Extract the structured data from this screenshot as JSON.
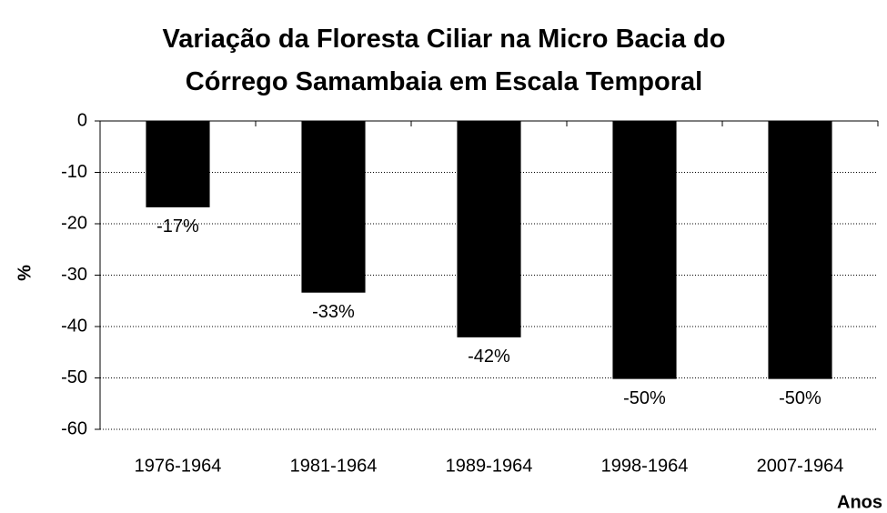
{
  "chart_data": {
    "type": "bar",
    "title": "Variação da Floresta Ciliar na Micro Bacia do Córrego Samambaia em Escala Temporal",
    "x_label": "Anos",
    "y_label": "%",
    "categories": [
      "1976-1964",
      "1981-1964",
      "1989-1964",
      "1998-1964",
      "2007-1964"
    ],
    "values": [
      -16.8,
      -33.4,
      -42.1,
      -50.2,
      -50.2
    ],
    "value_labels": [
      "-17%",
      "-33%",
      "-42%",
      "-50%",
      "-50%"
    ],
    "color": "#000000",
    "ylim": [
      -60,
      0
    ],
    "yticks": [
      0,
      -10,
      -20,
      -30,
      -40,
      -50,
      -60
    ],
    "grid": true
  }
}
